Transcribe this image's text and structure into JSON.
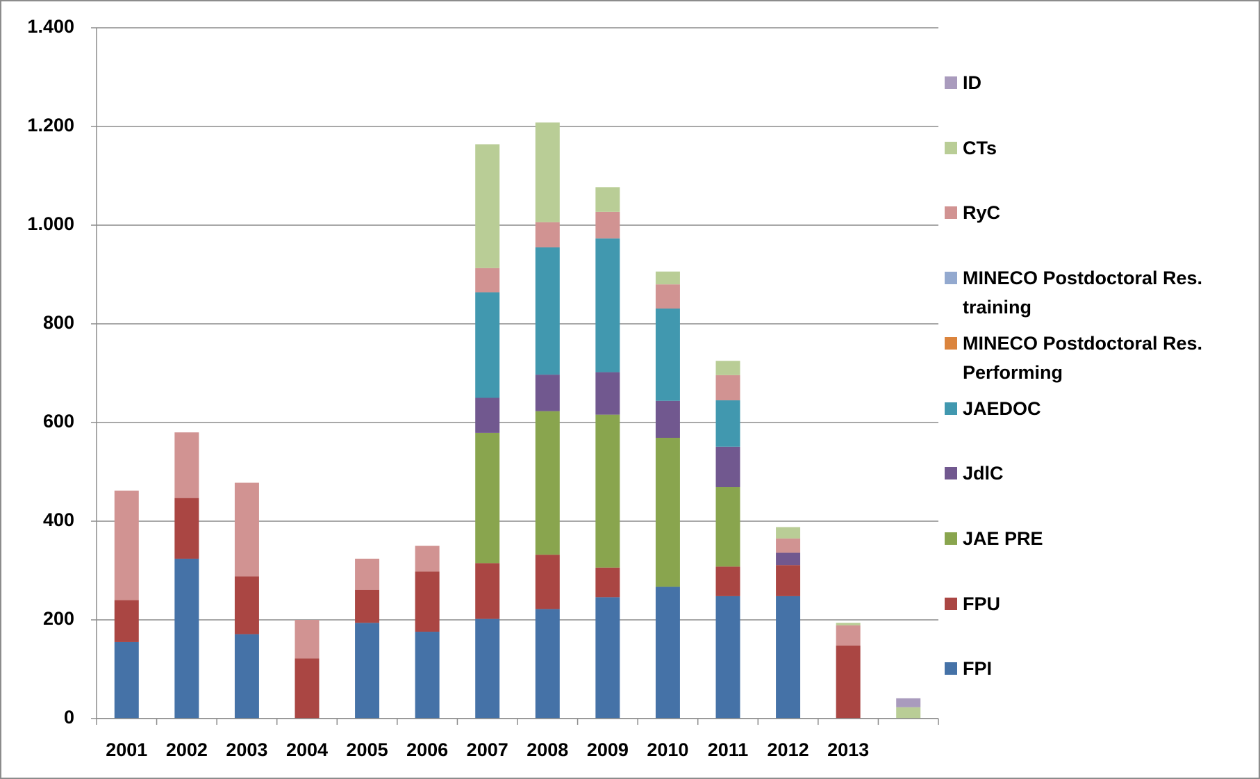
{
  "chart_data": {
    "type": "stacked_bar",
    "categories": [
      "2001",
      "2002",
      "2003",
      "2004",
      "2005",
      "2006",
      "2007",
      "2008",
      "2009",
      "2010",
      "2011",
      "2012",
      "2013",
      null
    ],
    "series": [
      {
        "name": "FPI",
        "color": "#4572a7",
        "values": [
          155,
          324,
          171,
          null,
          194,
          176,
          202,
          222,
          246,
          267,
          248,
          248,
          null,
          null
        ]
      },
      {
        "name": "FPU",
        "color": "#aa4643",
        "values": [
          85,
          123,
          117,
          122,
          67,
          122,
          113,
          110,
          60,
          null,
          60,
          63,
          148,
          null
        ]
      },
      {
        "name": "JAE PRE",
        "color": "#89a54e",
        "values": [
          null,
          null,
          null,
          null,
          null,
          null,
          264,
          291,
          310,
          302,
          161,
          null,
          null,
          null
        ]
      },
      {
        "name": "JdlC",
        "color": "#71588f",
        "values": [
          null,
          null,
          null,
          null,
          null,
          null,
          71,
          74,
          86,
          75,
          82,
          25,
          null,
          null
        ]
      },
      {
        "name": "JAEDOC",
        "color": "#4198af",
        "values": [
          null,
          null,
          null,
          null,
          null,
          null,
          214,
          258,
          271,
          187,
          94,
          null,
          null,
          null
        ]
      },
      {
        "name": "MINECO Postdoctoral Res. Performing",
        "color": "#db843d",
        "values": [
          null,
          null,
          null,
          null,
          null,
          null,
          null,
          null,
          null,
          null,
          null,
          null,
          null,
          null
        ]
      },
      {
        "name": "MINECO Postdoctoral Res. training",
        "color": "#93a9cf",
        "values": [
          null,
          null,
          null,
          null,
          null,
          null,
          null,
          null,
          null,
          null,
          null,
          null,
          null,
          null
        ]
      },
      {
        "name": "RyC",
        "color": "#d19392",
        "values": [
          222,
          133,
          190,
          78,
          63,
          52,
          49,
          51,
          54,
          49,
          51,
          29,
          41,
          null
        ]
      },
      {
        "name": "CTs",
        "color": "#b9cd96",
        "values": [
          null,
          null,
          null,
          null,
          null,
          null,
          251,
          202,
          50,
          26,
          29,
          23,
          5,
          23
        ]
      },
      {
        "name": "ID",
        "color": "#a99bbd",
        "values": [
          null,
          null,
          null,
          null,
          null,
          null,
          null,
          null,
          null,
          null,
          null,
          null,
          null,
          18
        ]
      }
    ],
    "ylim": [
      0,
      1400
    ],
    "yticks": [
      0,
      200,
      400,
      600,
      800,
      {
        "value": 1000,
        "label": "1.000"
      },
      {
        "value": 1200,
        "label": "1.200"
      },
      {
        "value": 1400,
        "label": "1.400"
      }
    ],
    "grid": true,
    "legend": "right"
  }
}
